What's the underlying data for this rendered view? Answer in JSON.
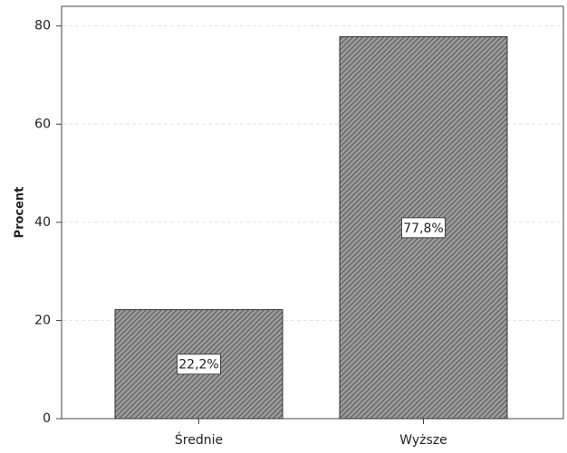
{
  "chart_data": {
    "type": "bar",
    "y_label": "Procent",
    "categories": [
      "Średnie",
      "Wyższe"
    ],
    "values": [
      22.2,
      77.8
    ],
    "value_labels": [
      "22,2%",
      "77,8%"
    ],
    "color": "#8c8c8c",
    "ylim": [
      0,
      84
    ],
    "yticks": [
      0,
      20,
      40,
      60,
      80
    ],
    "grid": true
  }
}
